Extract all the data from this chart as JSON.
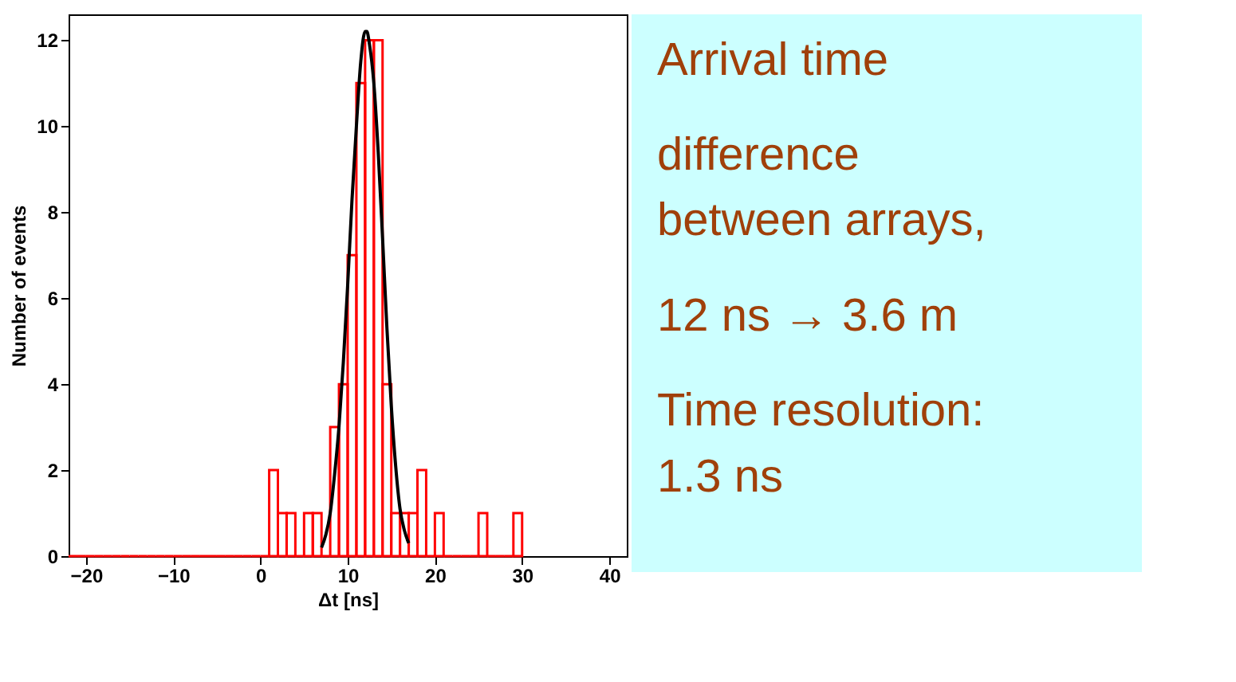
{
  "chart_data": [
    {
      "type": "histogram",
      "xlabel": "Δt [ns]",
      "ylabel": "Number of events",
      "color": "#ff0000",
      "bins": [
        -22,
        -21,
        -20,
        -19,
        -18,
        -17,
        -16,
        -15,
        -14,
        -13,
        -12,
        -11,
        -10,
        -9,
        -8,
        -7,
        -6,
        -5,
        -4,
        -3,
        -2,
        -1,
        0,
        1,
        2,
        3,
        4,
        5,
        6,
        7,
        8,
        9,
        10,
        11,
        12,
        13,
        14,
        15,
        16,
        17,
        18,
        19,
        20,
        21,
        22,
        23,
        24,
        25,
        26,
        27,
        28,
        29,
        30
      ],
      "values": [
        0,
        0,
        0,
        0,
        0,
        0,
        0,
        0,
        0,
        0,
        0,
        0,
        0,
        0,
        0,
        0,
        0,
        0,
        0,
        0,
        0,
        0,
        0,
        2,
        1,
        1,
        0,
        1,
        1,
        0,
        3,
        4,
        7,
        11,
        12,
        12,
        4,
        1,
        1,
        1,
        2,
        0,
        1,
        0,
        0,
        0,
        0,
        1,
        0,
        0,
        0,
        1
      ],
      "series": [
        {
          "type": "line",
          "color": "#000000",
          "x": [
            7,
            7.5,
            8,
            8.5,
            9,
            9.5,
            10,
            10.5,
            11,
            11.5,
            12,
            12.2,
            12.5,
            13,
            13.5,
            14,
            14.5,
            15,
            15.5,
            16,
            16.5,
            17
          ],
          "values": [
            0.2,
            0.5,
            1.0,
            1.9,
            3.0,
            4.5,
            6.3,
            8.3,
            10.0,
            11.5,
            12.2,
            12.2,
            11.9,
            11.0,
            9.4,
            7.4,
            5.3,
            3.5,
            2.1,
            1.1,
            0.6,
            0.3
          ]
        }
      ],
      "xlim": [
        -22,
        42
      ],
      "xticks": [
        -20,
        -10,
        0,
        10,
        20,
        30,
        40
      ],
      "ylim": [
        0,
        12.6
      ],
      "yticks": [
        0,
        2,
        4,
        6,
        8,
        10,
        12
      ],
      "grid": false
    },
    {
      "type": "other",
      "annotations": [
        "Arrival time",
        "difference between arrays,",
        "12 ns → 3.6 m",
        "Time resolution: 1.3 ns"
      ]
    }
  ]
}
